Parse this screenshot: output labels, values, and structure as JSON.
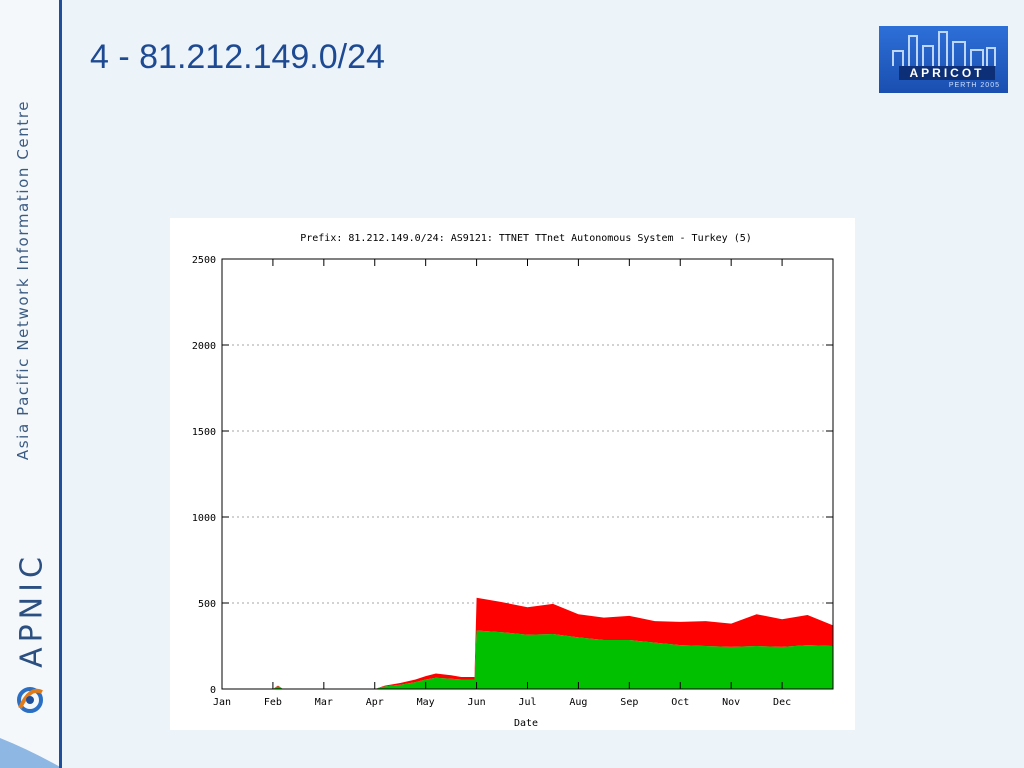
{
  "slide": {
    "title": "4 - 81.212.149.0/24",
    "sidebar_text": "Asia Pacific Network Information Centre",
    "org_name": "APNIC",
    "conference_logo": {
      "name": "APRICOT",
      "sub": "PERTH 2005"
    }
  },
  "chart_data": {
    "type": "area",
    "title": "Prefix: 81.212.149.0/24: AS9121: TTNET TTnet Autonomous System - Turkey (5)",
    "xlabel": "Date",
    "ylabel": "",
    "ylim": [
      0,
      2500
    ],
    "xlim": [
      0,
      12
    ],
    "yticks": [
      0,
      500,
      1000,
      1500,
      2000,
      2500
    ],
    "categories": [
      "Jan",
      "Feb",
      "Mar",
      "Apr",
      "May",
      "Jun",
      "Jul",
      "Aug",
      "Sep",
      "Oct",
      "Nov",
      "Dec"
    ],
    "grid": "horizontal dotted",
    "series": [
      {
        "color": "#00c000",
        "x": [
          0,
          1.0,
          1.1,
          1.2,
          3.0,
          3.2,
          3.5,
          3.8,
          4.0,
          4.2,
          4.5,
          4.7,
          4.96,
          5.0,
          5.5,
          6.0,
          6.5,
          7.0,
          7.5,
          8.0,
          8.5,
          9.0,
          9.5,
          10.0,
          10.5,
          11.0,
          11.5,
          12.0
        ],
        "y": [
          0,
          0,
          15,
          0,
          0,
          15,
          25,
          40,
          55,
          65,
          60,
          55,
          55,
          340,
          330,
          315,
          320,
          300,
          285,
          285,
          270,
          255,
          250,
          245,
          250,
          245,
          255,
          250
        ]
      },
      {
        "color": "#ff0000",
        "x": [
          0,
          1.0,
          1.1,
          1.2,
          3.0,
          3.2,
          3.5,
          3.8,
          4.0,
          4.2,
          4.5,
          4.7,
          4.96,
          5.0,
          5.5,
          6.0,
          6.5,
          7.0,
          7.5,
          8.0,
          8.5,
          9.0,
          9.5,
          10.0,
          10.5,
          11.0,
          11.5,
          12.0
        ],
        "y": [
          0,
          0,
          5,
          0,
          0,
          5,
          10,
          15,
          20,
          25,
          20,
          15,
          15,
          190,
          175,
          160,
          175,
          135,
          130,
          140,
          125,
          135,
          145,
          135,
          185,
          160,
          175,
          120
        ]
      }
    ]
  }
}
